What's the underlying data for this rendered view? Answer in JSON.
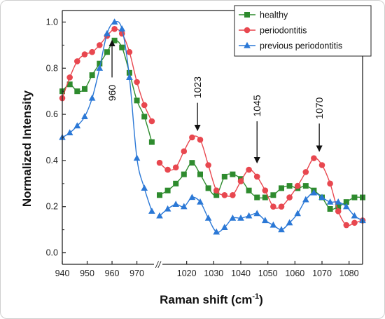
{
  "chart_data": {
    "type": "line",
    "title": "",
    "xlabel": "Raman shift (cm",
    "xlabel_sup": "-1",
    "xlabel_end": ")",
    "ylabel": "Normalized Intensity",
    "ylim": [
      -0.05,
      1.05
    ],
    "y_ticks": [
      "0.0",
      "0.2",
      "0.4",
      "0.6",
      "0.8",
      "1.0"
    ],
    "x_break": {
      "left_range": [
        940,
        978
      ],
      "right_range": [
        1010,
        1085
      ],
      "mark": "//"
    },
    "x_ticks_left": [
      "940",
      "950",
      "960",
      "970"
    ],
    "x_ticks_right": [
      "1020",
      "1030",
      "1040",
      "1050",
      "1060",
      "1070",
      "1080"
    ],
    "legend_position": "top-right",
    "series": [
      {
        "name": "healthy",
        "color": "#2e8b2e",
        "marker": "square",
        "x": [
          940,
          943,
          946,
          949,
          952,
          955,
          958,
          961,
          964,
          967,
          970,
          973,
          976,
          1010,
          1013,
          1016,
          1019,
          1022,
          1025,
          1028,
          1031,
          1034,
          1037,
          1040,
          1043,
          1046,
          1049,
          1052,
          1055,
          1058,
          1061,
          1064,
          1067,
          1070,
          1073,
          1076,
          1079,
          1082,
          1085
        ],
        "values": [
          0.7,
          0.73,
          0.7,
          0.71,
          0.77,
          0.82,
          0.87,
          0.92,
          0.89,
          0.78,
          0.66,
          0.59,
          0.48,
          0.25,
          0.27,
          0.3,
          0.34,
          0.39,
          0.34,
          0.28,
          0.25,
          0.33,
          0.34,
          0.32,
          0.27,
          0.24,
          0.24,
          0.25,
          0.28,
          0.29,
          0.28,
          0.29,
          0.27,
          0.24,
          0.19,
          0.2,
          0.22,
          0.24,
          0.24
        ]
      },
      {
        "name": "periodontitis",
        "color": "#e8474f",
        "marker": "circle",
        "x": [
          940,
          943,
          946,
          949,
          952,
          955,
          958,
          961,
          964,
          967,
          970,
          973,
          976,
          1010,
          1013,
          1016,
          1019,
          1022,
          1025,
          1028,
          1031,
          1034,
          1037,
          1040,
          1043,
          1046,
          1049,
          1052,
          1055,
          1058,
          1061,
          1064,
          1067,
          1070,
          1073,
          1076,
          1079,
          1082,
          1085
        ],
        "values": [
          0.67,
          0.76,
          0.83,
          0.86,
          0.87,
          0.9,
          0.94,
          0.97,
          0.95,
          0.87,
          0.74,
          0.64,
          0.57,
          0.39,
          0.36,
          0.37,
          0.44,
          0.5,
          0.49,
          0.38,
          0.27,
          0.25,
          0.25,
          0.31,
          0.36,
          0.33,
          0.27,
          0.2,
          0.2,
          0.24,
          0.29,
          0.35,
          0.41,
          0.38,
          0.3,
          0.18,
          0.12,
          0.13,
          0.14
        ]
      },
      {
        "name": "previous periodontitis",
        "color": "#2b78d6",
        "marker": "triangle",
        "x": [
          940,
          943,
          946,
          949,
          952,
          955,
          958,
          961,
          964,
          967,
          970,
          973,
          976,
          1010,
          1013,
          1016,
          1019,
          1022,
          1025,
          1028,
          1031,
          1034,
          1037,
          1040,
          1043,
          1046,
          1049,
          1052,
          1055,
          1058,
          1061,
          1064,
          1067,
          1070,
          1073,
          1076,
          1079,
          1082,
          1085
        ],
        "values": [
          0.5,
          0.52,
          0.55,
          0.59,
          0.67,
          0.8,
          0.95,
          1.0,
          0.97,
          0.76,
          0.41,
          0.28,
          0.18,
          0.16,
          0.19,
          0.21,
          0.2,
          0.24,
          0.22,
          0.15,
          0.09,
          0.11,
          0.15,
          0.15,
          0.16,
          0.17,
          0.14,
          0.12,
          0.1,
          0.13,
          0.17,
          0.23,
          0.26,
          0.24,
          0.22,
          0.22,
          0.2,
          0.16,
          0.14
        ]
      }
    ],
    "annotations": [
      {
        "label": "960",
        "x": 960,
        "arrow_tip": 0.92,
        "arrow_tail": 0.76
      },
      {
        "label": "1023",
        "x": 1024,
        "arrow_tip": 0.53,
        "arrow_tail": 0.65
      },
      {
        "label": "1045",
        "x": 1046,
        "arrow_tip": 0.39,
        "arrow_tail": 0.57
      },
      {
        "label": "1070",
        "x": 1069,
        "arrow_tip": 0.44,
        "arrow_tail": 0.56
      }
    ]
  }
}
